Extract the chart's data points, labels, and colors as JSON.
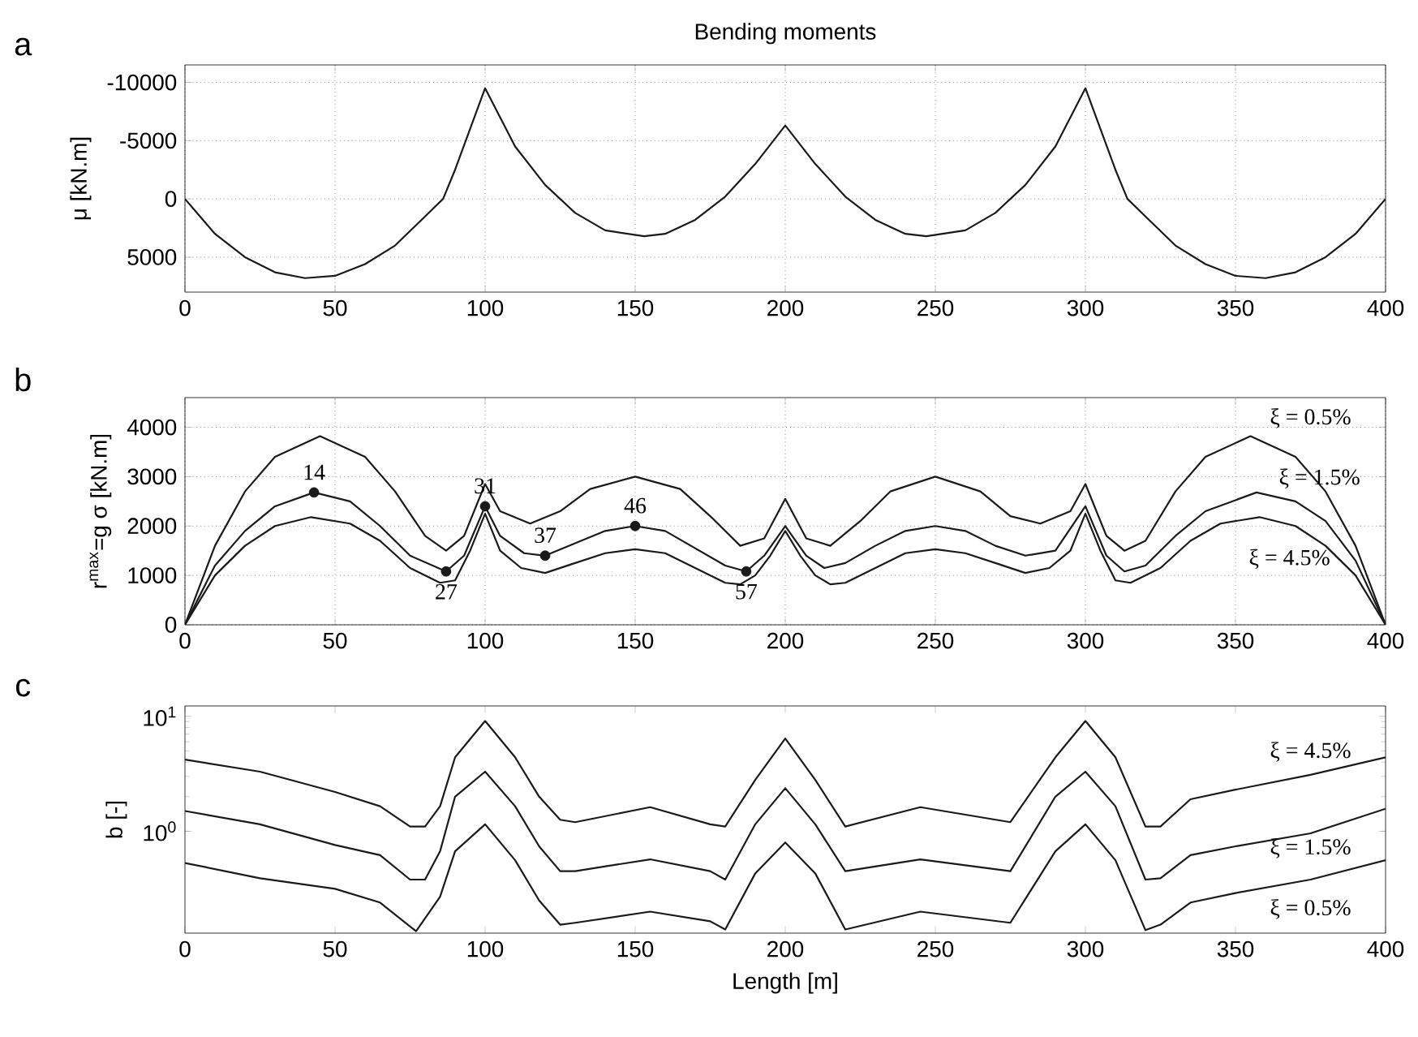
{
  "chart_data": [
    {
      "type": "line",
      "title": "Bending moments",
      "ylabel": "μ [kN.m]",
      "xlim": [
        0,
        400
      ],
      "ylim": [
        8000,
        -11500
      ],
      "xticks": [
        0,
        50,
        100,
        150,
        200,
        250,
        300,
        350,
        400
      ],
      "yticks": [
        -10000,
        -5000,
        0,
        5000
      ],
      "grid": true,
      "annotations": [
        "a"
      ],
      "series": [
        {
          "color": "#1a1a1a",
          "x": [
            0,
            10,
            20,
            30,
            40,
            50,
            60,
            70,
            80,
            86,
            90,
            95,
            100,
            110,
            120,
            130,
            140,
            153,
            160,
            170,
            180,
            190,
            200,
            210,
            220,
            230,
            240,
            247,
            260,
            270,
            280,
            290,
            300,
            305,
            310,
            314,
            320,
            330,
            340,
            350,
            360,
            370,
            380,
            390,
            400
          ],
          "values": [
            0,
            3000,
            5000,
            6300,
            6800,
            6600,
            5600,
            4000,
            1500,
            0,
            -2500,
            -6000,
            -9500,
            -4500,
            -1200,
            1200,
            2700,
            3200,
            3000,
            1800,
            -200,
            -3000,
            -6300,
            -3000,
            -200,
            1800,
            3000,
            3200,
            2700,
            1200,
            -1200,
            -4500,
            -9500,
            -6000,
            -2500,
            0,
            1500,
            4000,
            5600,
            6600,
            6800,
            6300,
            5000,
            3000,
            0
          ]
        }
      ]
    },
    {
      "type": "line",
      "ylabel": "r$^{max}$=g σ [kN.m]",
      "xlim": [
        0,
        400
      ],
      "ylim": [
        0,
        4600
      ],
      "xticks": [
        0,
        50,
        100,
        150,
        200,
        250,
        300,
        350,
        400
      ],
      "yticks": [
        0,
        1000,
        2000,
        3000,
        4000
      ],
      "grid": true,
      "annotations": [
        "b",
        {
          "text": "14",
          "x": 43,
          "y": 2680
        },
        {
          "text": "27",
          "x": 87,
          "y": 1080
        },
        {
          "text": "31",
          "x": 100,
          "y": 2400
        },
        {
          "text": "37",
          "x": 120,
          "y": 1400
        },
        {
          "text": "46",
          "x": 150,
          "y": 2000
        },
        {
          "text": "57",
          "x": 187,
          "y": 1080
        }
      ],
      "series": [
        {
          "name": "ξ = 0.5%",
          "color": "#1a1a1a",
          "x": [
            0,
            10,
            20,
            30,
            45,
            60,
            70,
            80,
            87,
            93,
            100,
            105,
            115,
            125,
            135,
            150,
            165,
            175,
            185,
            193,
            200,
            207,
            215,
            225,
            235,
            250,
            265,
            275,
            285,
            295,
            300,
            307,
            313,
            320,
            330,
            340,
            355,
            370,
            380,
            390,
            400
          ],
          "values": [
            0,
            1600,
            2700,
            3400,
            3820,
            3400,
            2700,
            1800,
            1500,
            1800,
            2850,
            2300,
            2050,
            2300,
            2750,
            3000,
            2750,
            2200,
            1600,
            1750,
            2550,
            1750,
            1600,
            2100,
            2700,
            3000,
            2700,
            2200,
            2050,
            2300,
            2850,
            1800,
            1500,
            1700,
            2700,
            3400,
            3820,
            3400,
            2700,
            1600,
            0
          ]
        },
        {
          "name": "ξ = 1.5%",
          "color": "#1a1a1a",
          "x": [
            0,
            10,
            20,
            30,
            43,
            55,
            65,
            75,
            87,
            93,
            100,
            105,
            113,
            120,
            130,
            140,
            150,
            160,
            170,
            180,
            187,
            193,
            200,
            207,
            213,
            220,
            230,
            240,
            250,
            260,
            270,
            280,
            290,
            300,
            307,
            313,
            320,
            330,
            340,
            357,
            370,
            380,
            390,
            400
          ],
          "values": [
            0,
            1200,
            1900,
            2400,
            2680,
            2500,
            2000,
            1400,
            1080,
            1400,
            2400,
            1800,
            1450,
            1400,
            1650,
            1900,
            2000,
            1900,
            1550,
            1200,
            1080,
            1400,
            2000,
            1400,
            1150,
            1250,
            1600,
            1900,
            2000,
            1900,
            1600,
            1400,
            1500,
            2400,
            1400,
            1080,
            1200,
            1800,
            2300,
            2680,
            2500,
            2100,
            1300,
            0
          ]
        },
        {
          "name": "ξ = 4.5%",
          "color": "#1a1a1a",
          "x": [
            0,
            10,
            20,
            30,
            42,
            55,
            65,
            75,
            85,
            90,
            95,
            100,
            105,
            112,
            120,
            130,
            140,
            150,
            160,
            170,
            180,
            185,
            190,
            195,
            200,
            205,
            210,
            215,
            220,
            230,
            240,
            250,
            260,
            270,
            280,
            288,
            295,
            300,
            305,
            310,
            315,
            325,
            335,
            345,
            358,
            370,
            380,
            390,
            400
          ],
          "values": [
            0,
            1000,
            1600,
            2000,
            2180,
            2050,
            1700,
            1150,
            850,
            900,
            1500,
            2250,
            1500,
            1150,
            1050,
            1250,
            1450,
            1530,
            1450,
            1150,
            850,
            820,
            1000,
            1400,
            1900,
            1400,
            1000,
            820,
            850,
            1150,
            1450,
            1530,
            1450,
            1250,
            1050,
            1150,
            1500,
            2250,
            1500,
            900,
            850,
            1150,
            1700,
            2050,
            2180,
            2000,
            1600,
            1000,
            0
          ]
        },
        {
          "type": "scatter",
          "color": "#1a1a1a",
          "x": [
            43,
            87,
            100,
            120,
            150,
            187
          ],
          "values": [
            2680,
            1080,
            2400,
            1400,
            2000,
            1080
          ]
        }
      ]
    },
    {
      "type": "line",
      "xlabel": "Length [m]",
      "ylabel": "b [-]",
      "xlim": [
        0,
        400
      ],
      "ylim": [
        0.13,
        12.3
      ],
      "xticks": [
        0,
        50,
        100,
        150,
        200,
        250,
        300,
        350,
        400
      ],
      "yticks": [
        {
          "value": 1,
          "label": "10$^{0}$"
        },
        {
          "value": 10,
          "label": "10$^{1}$"
        }
      ],
      "log": "y",
      "grid": false,
      "annotations": [
        "c"
      ],
      "series": [
        {
          "name": "ξ = 4.5%",
          "color": "#1a1a1a",
          "x": [
            0,
            25,
            50,
            65,
            75,
            80,
            85,
            90,
            100,
            110,
            118,
            125,
            130,
            155,
            175,
            180,
            190,
            200,
            210,
            220,
            245,
            275,
            290,
            300,
            310,
            320,
            325,
            335,
            350,
            375,
            400
          ],
          "values": [
            4.2,
            3.3,
            2.2,
            1.65,
            1.1,
            1.1,
            1.65,
            4.4,
            9.1,
            4.4,
            2.0,
            1.26,
            1.2,
            1.62,
            1.15,
            1.1,
            2.8,
            6.4,
            2.8,
            1.1,
            1.62,
            1.2,
            4.4,
            9.1,
            4.4,
            1.1,
            1.1,
            1.9,
            2.3,
            3.1,
            4.4
          ]
        },
        {
          "name": "ξ = 1.5%",
          "color": "#1a1a1a",
          "x": [
            0,
            25,
            50,
            65,
            75,
            80,
            85,
            90,
            100,
            110,
            118,
            125,
            130,
            155,
            175,
            180,
            190,
            200,
            210,
            220,
            245,
            275,
            290,
            300,
            310,
            320,
            325,
            335,
            350,
            375,
            400
          ],
          "values": [
            1.5,
            1.15,
            0.76,
            0.62,
            0.38,
            0.38,
            0.67,
            2.0,
            3.3,
            1.65,
            0.74,
            0.45,
            0.45,
            0.57,
            0.45,
            0.38,
            1.15,
            2.37,
            1.15,
            0.45,
            0.57,
            0.45,
            2.0,
            3.3,
            1.65,
            0.38,
            0.39,
            0.62,
            0.74,
            0.96,
            1.57
          ]
        },
        {
          "name": "ξ = 0.5%",
          "color": "#1a1a1a",
          "x": [
            0,
            25,
            50,
            65,
            77,
            85,
            90,
            100,
            110,
            118,
            125,
            130,
            155,
            175,
            180,
            190,
            200,
            210,
            220,
            245,
            275,
            290,
            300,
            310,
            320,
            325,
            335,
            350,
            375,
            400
          ],
          "values": [
            0.53,
            0.39,
            0.316,
            0.24,
            0.135,
            0.27,
            0.67,
            1.15,
            0.56,
            0.25,
            0.154,
            0.16,
            0.2,
            0.165,
            0.14,
            0.43,
            0.8,
            0.43,
            0.14,
            0.2,
            0.16,
            0.67,
            1.15,
            0.56,
            0.138,
            0.154,
            0.24,
            0.29,
            0.38,
            0.56
          ]
        }
      ]
    }
  ]
}
